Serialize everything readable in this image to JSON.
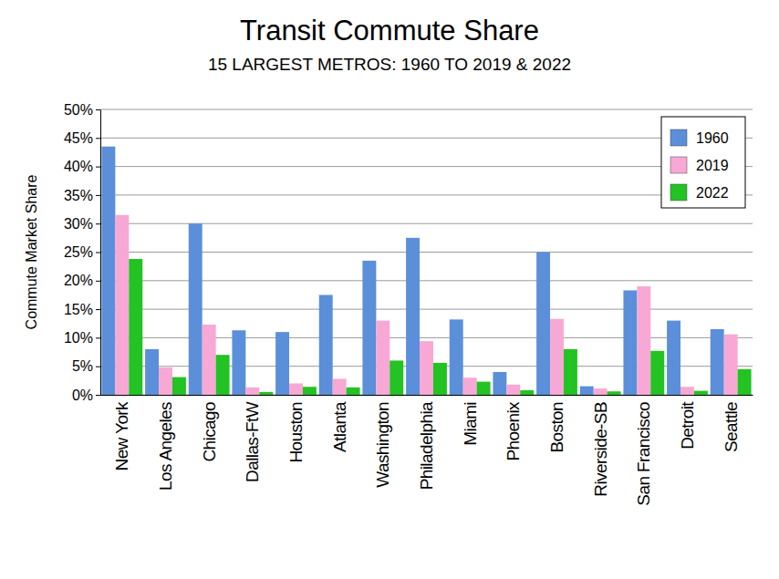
{
  "chart_data": {
    "type": "bar",
    "title": "Transit Commute Share",
    "subtitle": "15 LARGEST METROS: 1960 TO 2019 & 2022",
    "y_label": "Commute Market Share",
    "categories": [
      "New York",
      "Los Angeles",
      "Chicago",
      "Dallas-FtW",
      "Houston",
      "Atlanta",
      "Washington",
      "Philadelphia",
      "Miami",
      "Phoenix",
      "Boston",
      "Riverside-SB",
      "San Francisco",
      "Detroit",
      "Seattle"
    ],
    "series": [
      {
        "name": "1960",
        "color": "#5b8fd9",
        "values": [
          43.5,
          8,
          30,
          11.3,
          11,
          17.5,
          23.5,
          27.5,
          13.2,
          4,
          25,
          1.5,
          18.3,
          13,
          11.5
        ]
      },
      {
        "name": "2019",
        "color": "#f8a8d5",
        "values": [
          31.5,
          4.8,
          12.3,
          1.3,
          2,
          2.8,
          13,
          9.4,
          3,
          1.8,
          13.3,
          1.1,
          19,
          1.4,
          10.6
        ]
      },
      {
        "name": "2022",
        "color": "#22c322",
        "values": [
          23.8,
          3.1,
          7,
          0.5,
          1.4,
          1.3,
          6,
          5.6,
          2.3,
          0.8,
          8,
          0.6,
          7.7,
          0.7,
          4.5
        ]
      }
    ],
    "ylim": [
      0,
      50
    ],
    "yticks": [
      {
        "value": 0,
        "label": "0%"
      },
      {
        "value": 5,
        "label": "5%"
      },
      {
        "value": 10,
        "label": "10%"
      },
      {
        "value": 15,
        "label": "15%"
      },
      {
        "value": 20,
        "label": "20%"
      },
      {
        "value": 25,
        "label": "25%"
      },
      {
        "value": 30,
        "label": "30%"
      },
      {
        "value": 35,
        "label": "35%"
      },
      {
        "value": 40,
        "label": "40%"
      },
      {
        "value": 45,
        "label": "45%"
      },
      {
        "value": 50,
        "label": "50%"
      }
    ],
    "grid": true,
    "legend": "top-right"
  }
}
